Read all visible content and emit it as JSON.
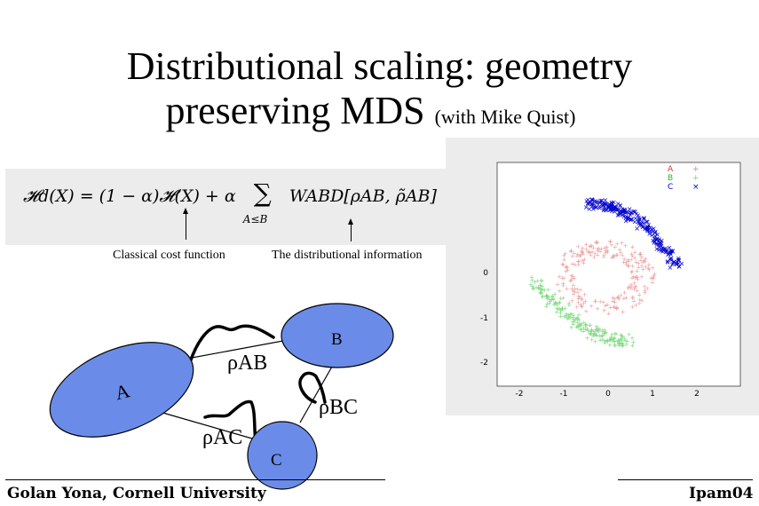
{
  "title": {
    "line1": "Distributional scaling: geometry",
    "line2_main": "preserving MDS",
    "line2_small": "(with Mike Quist)"
  },
  "formula": {
    "lhs": "𝓗d(X) = (1 − α)𝓗(X) + α",
    "sum_symbol": "∑",
    "sum_limit": "A≤B",
    "rhs": "WABD[ρAB, ρ̃AB]"
  },
  "captions": {
    "classical": "Classical cost function",
    "distributional": "The distributional information"
  },
  "diagram": {
    "node_a": "A",
    "node_b": "B",
    "node_c": "C",
    "rho_ab": "ρAB",
    "rho_bc": "ρBC",
    "rho_ac": "ρAC"
  },
  "scatter": {
    "legend": [
      "A",
      "B",
      "C"
    ],
    "y_ticks": [
      "0",
      "-1",
      "-2"
    ],
    "x_ticks": [
      "-2",
      "-1",
      "0",
      "1",
      "2"
    ],
    "colors": {
      "A": "#e8a0a0",
      "B": "#7fd87f",
      "C": "#0000cc"
    }
  },
  "footer": {
    "left": "Golan Yona, Cornell University",
    "right": "Ipam04"
  }
}
